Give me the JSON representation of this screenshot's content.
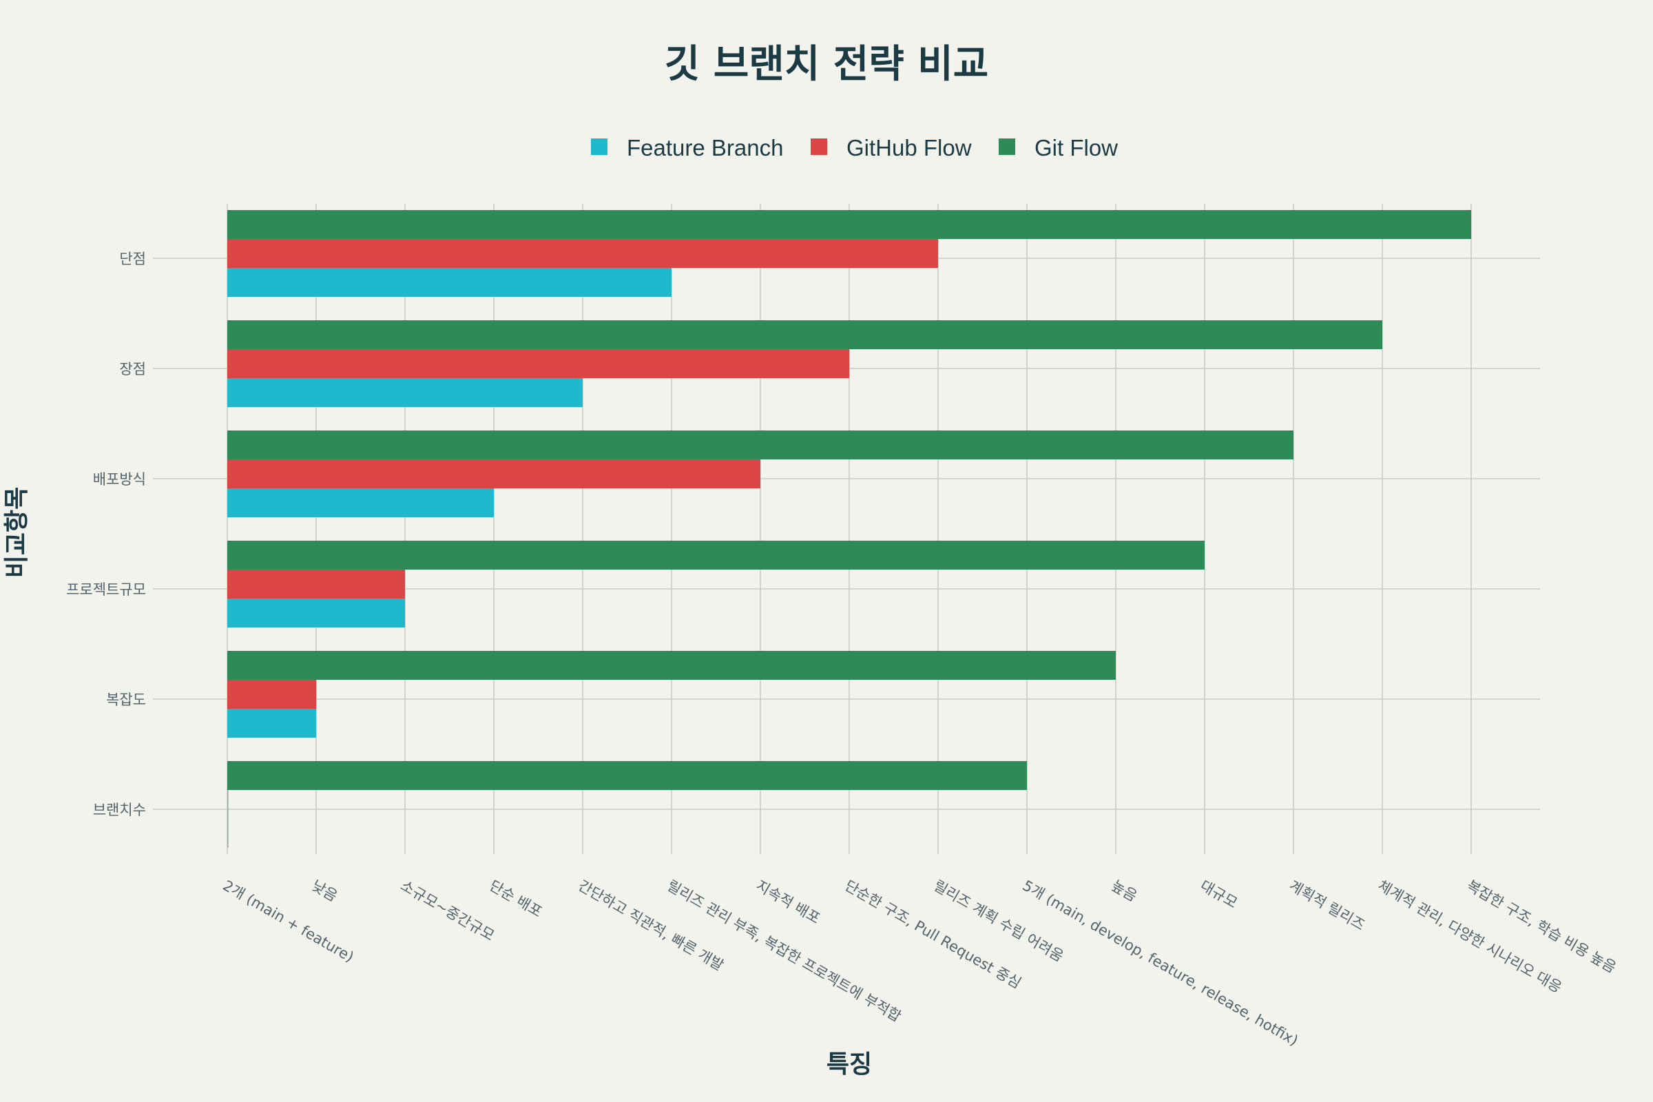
{
  "chart_data": {
    "type": "bar",
    "orientation": "horizontal",
    "title": "깃 브랜치 전략 비교",
    "xlabel": "특징",
    "ylabel": "비교항목",
    "categories": [
      "단점",
      "장점",
      "배포방식",
      "프로젝트규모",
      "복잡도",
      "브랜치수"
    ],
    "x_categories": [
      "2개 (main + feature)",
      "낮음",
      "소규모~중간규모",
      "단순 배포",
      "간단하고 직관적, 빠른 개발",
      "릴리즈 관리 부족, 복잡한 프로젝트에 부적합",
      "지속적 배포",
      "단순한 구조, Pull Request 중심",
      "릴리즈 계획 수립 어려움",
      "5개 (main, develop, feature, release, hotfix)",
      "높음",
      "대규모",
      "계획적 릴리즈",
      "체계적 관리, 다양한 시나리오 대응",
      "복잡한 구조, 학습 비용 높음"
    ],
    "series": [
      {
        "name": "Feature Branch",
        "color": "#1fb8cd",
        "values": [
          "릴리즈 관리 부족, 복잡한 프로젝트에 부적합",
          "간단하고 직관적, 빠른 개발",
          "단순 배포",
          "소규모~중간규모",
          "낮음",
          "2개 (main + feature)"
        ]
      },
      {
        "name": "GitHub Flow",
        "color": "#db4545",
        "values": [
          "릴리즈 계획 수립 어려움",
          "단순한 구조, Pull Request 중심",
          "지속적 배포",
          "소규모~중간규모",
          "낮음",
          "2개 (main + feature)"
        ]
      },
      {
        "name": "Git Flow",
        "color": "#2e8b57",
        "values": [
          "복잡한 구조, 학습 비용 높음",
          "체계적 관리, 다양한 시나리오 대응",
          "계획적 릴리즈",
          "대규모",
          "높음",
          "5개 (main, develop, feature, release, hotfix)"
        ]
      }
    ],
    "legend_position": "top-center",
    "grid": true
  }
}
